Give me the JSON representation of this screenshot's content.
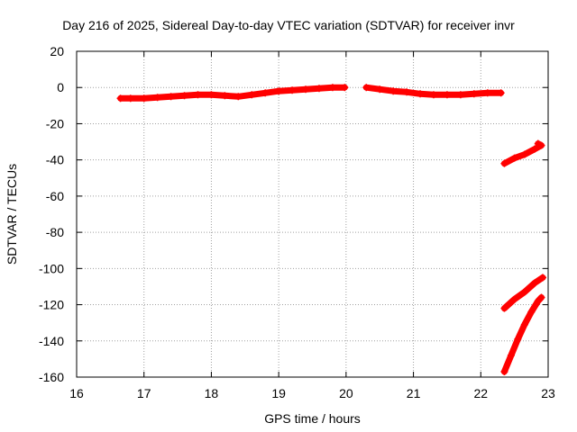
{
  "chart_data": {
    "type": "scatter",
    "title": "Day 216 of 2025, Sidereal Day-to-day VTEC variation (SDTVAR) for receiver invr",
    "xlabel": "GPS time / hours",
    "ylabel": "SDTVAR / TECUs",
    "xlim": [
      16,
      23
    ],
    "ylim": [
      -160,
      20
    ],
    "xticks": [
      16,
      17,
      18,
      19,
      20,
      21,
      22,
      23
    ],
    "yticks": [
      20,
      0,
      -20,
      -40,
      -60,
      -80,
      -100,
      -120,
      -140,
      -160
    ],
    "grid": true,
    "marker": "plus",
    "colors": {
      "series": "#ff0000",
      "grid": "#a0a0a0",
      "axis": "#000000"
    },
    "series": [
      {
        "points": [
          [
            16.65,
            -6
          ],
          [
            16.8,
            -6
          ],
          [
            17.0,
            -6
          ],
          [
            17.2,
            -5.5
          ],
          [
            17.4,
            -5
          ],
          [
            17.6,
            -4.5
          ],
          [
            17.8,
            -4
          ],
          [
            18.0,
            -4
          ],
          [
            18.2,
            -4.5
          ],
          [
            18.4,
            -5
          ],
          [
            18.6,
            -4
          ],
          [
            18.8,
            -3
          ],
          [
            19.0,
            -2
          ],
          [
            19.2,
            -1.5
          ],
          [
            19.4,
            -1
          ],
          [
            19.6,
            -0.5
          ],
          [
            19.8,
            0
          ],
          [
            19.98,
            0
          ]
        ]
      },
      {
        "points": [
          [
            20.3,
            0
          ],
          [
            20.5,
            -1
          ],
          [
            20.7,
            -2
          ],
          [
            20.9,
            -2.5
          ],
          [
            21.1,
            -3.5
          ],
          [
            21.3,
            -4
          ],
          [
            21.5,
            -4
          ],
          [
            21.7,
            -4
          ],
          [
            21.9,
            -3.5
          ],
          [
            22.1,
            -3
          ],
          [
            22.3,
            -3
          ]
        ]
      },
      {
        "points": [
          [
            22.35,
            -42
          ],
          [
            22.5,
            -39
          ],
          [
            22.65,
            -37
          ],
          [
            22.8,
            -34
          ],
          [
            22.9,
            -32
          ],
          [
            22.85,
            -31
          ]
        ]
      },
      {
        "points": [
          [
            22.35,
            -122
          ],
          [
            22.5,
            -117
          ],
          [
            22.65,
            -113
          ],
          [
            22.8,
            -108
          ],
          [
            22.92,
            -105
          ]
        ]
      },
      {
        "points": [
          [
            22.35,
            -157
          ],
          [
            22.45,
            -148
          ],
          [
            22.55,
            -139
          ],
          [
            22.65,
            -131
          ],
          [
            22.75,
            -124
          ],
          [
            22.85,
            -118
          ],
          [
            22.9,
            -116
          ]
        ]
      }
    ]
  }
}
